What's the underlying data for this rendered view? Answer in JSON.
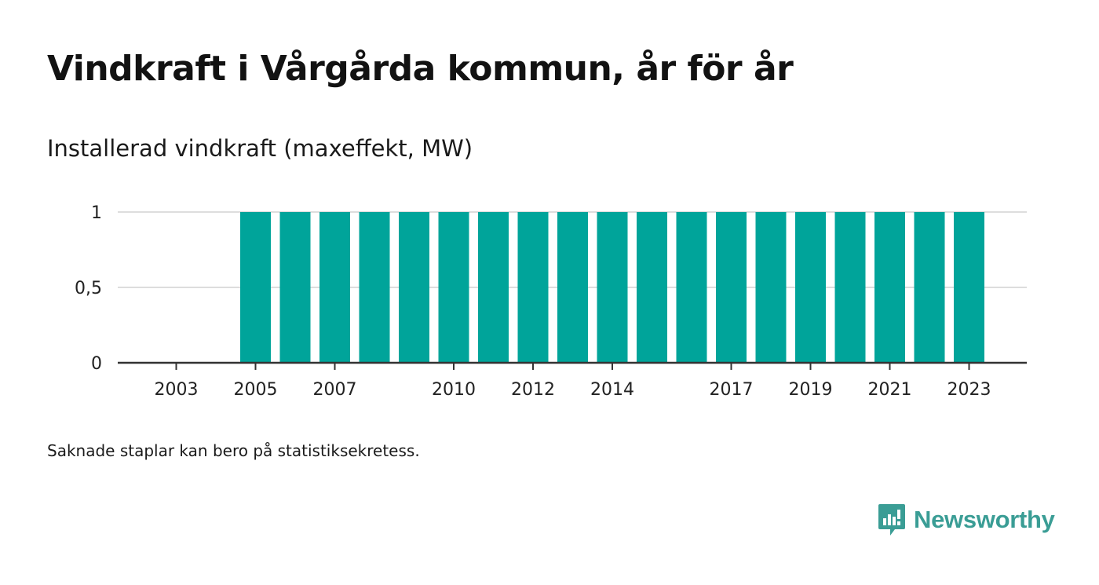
{
  "header": {
    "title": "Vindkraft i Vårgårda kommun, år för år",
    "subtitle": "Installerad vindkraft (maxeffekt, MW)"
  },
  "footer": {
    "note": "Saknade staplar kan bero på statistiksekretess.",
    "brand": "Newsworthy",
    "brand_icon": "bar-chart-speech-bubble-icon"
  },
  "colors": {
    "bar": "#00a49a",
    "grid": "#dddddd",
    "axis": "#333333",
    "brand": "#3a9d95"
  },
  "chart_data": {
    "type": "bar",
    "title": "Vindkraft i Vårgårda kommun, år för år",
    "subtitle": "Installerad vindkraft (maxeffekt, MW)",
    "xlabel": "",
    "ylabel": "",
    "categories": [
      2003,
      2004,
      2005,
      2006,
      2007,
      2008,
      2009,
      2010,
      2011,
      2012,
      2013,
      2014,
      2015,
      2016,
      2017,
      2018,
      2019,
      2020,
      2021,
      2022,
      2023
    ],
    "values": [
      null,
      null,
      1,
      1,
      1,
      1,
      1,
      1,
      1,
      1,
      1,
      1,
      1,
      1,
      1,
      1,
      1,
      1,
      1,
      1,
      1
    ],
    "x_tick_labels": [
      "2003",
      "2005",
      "2007",
      "2010",
      "2012",
      "2014",
      "2017",
      "2019",
      "2021",
      "2023"
    ],
    "y_ticks": [
      0,
      0.5,
      1
    ],
    "y_tick_labels": [
      "0",
      "0,5",
      "1"
    ],
    "ylim": [
      0,
      1
    ],
    "grid": true,
    "legend": "none"
  }
}
